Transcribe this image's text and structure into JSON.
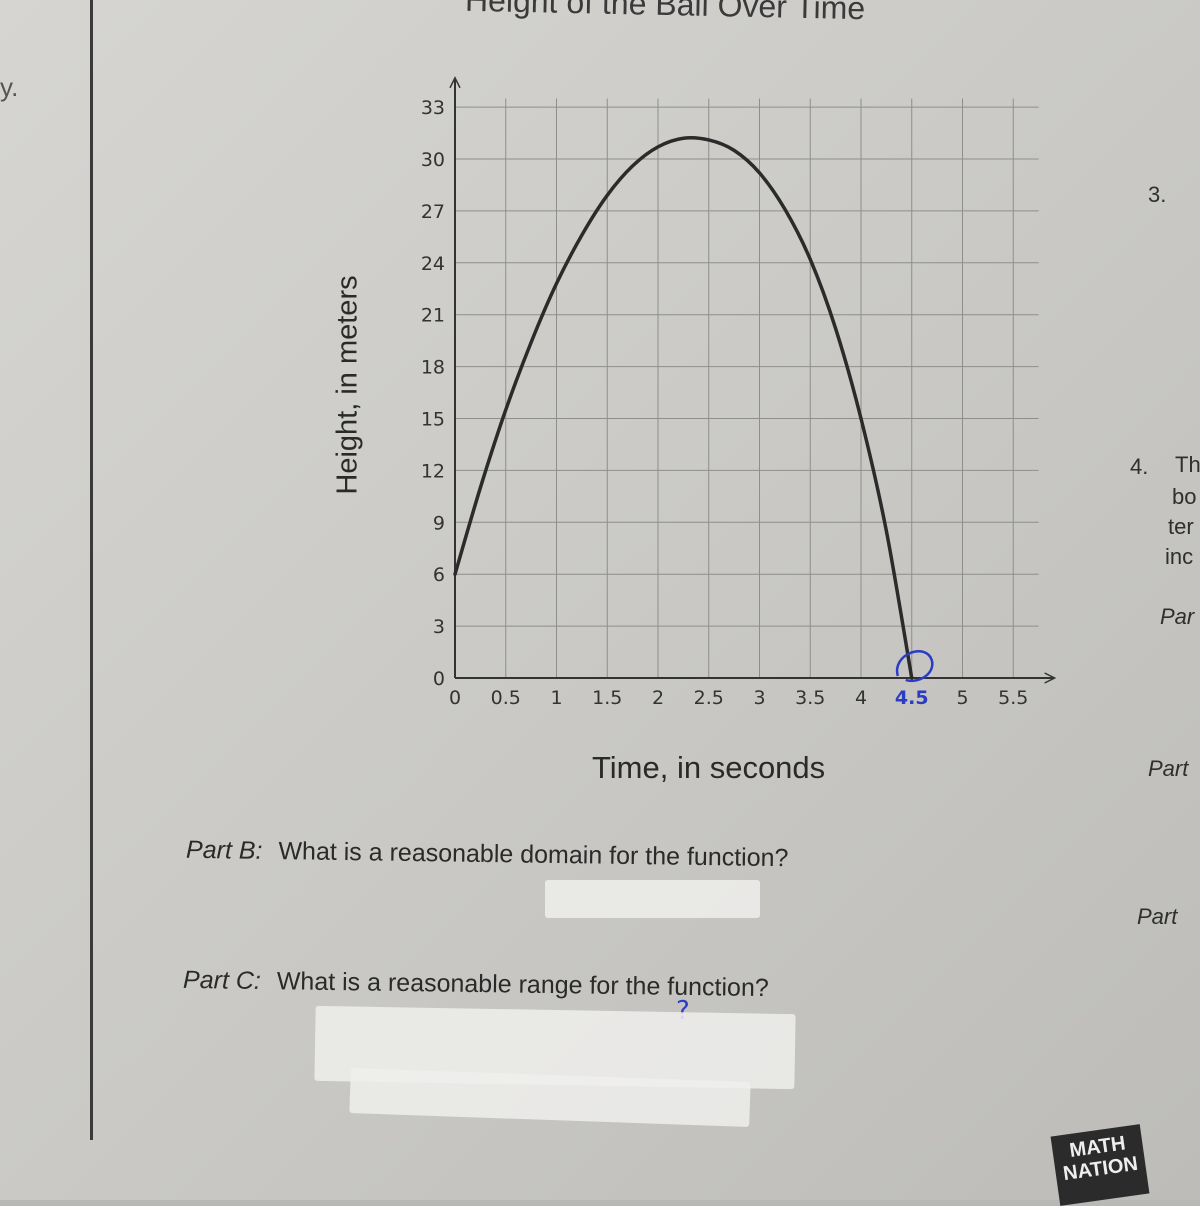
{
  "chart_data": {
    "type": "line",
    "title": "Height of the Ball Over Time",
    "xlabel": "Time, in seconds",
    "ylabel": "Height, in meters",
    "xlim": [
      0,
      5.75
    ],
    "ylim": [
      0,
      34
    ],
    "x_ticks": [
      "0",
      "0.5",
      "1",
      "1.5",
      "2",
      "2.5",
      "3",
      "3.5",
      "4",
      "4.5",
      "5",
      "5.5"
    ],
    "y_ticks": [
      "0",
      "3",
      "6",
      "9",
      "12",
      "15",
      "18",
      "21",
      "24",
      "27",
      "30",
      "33"
    ],
    "x": [
      0,
      0.25,
      0.5,
      0.75,
      1.0,
      1.25,
      1.5,
      1.75,
      2.0,
      2.25,
      2.5,
      2.75,
      3.0,
      3.25,
      3.5,
      3.75,
      4.0,
      4.25,
      4.5
    ],
    "y": [
      6.0,
      11.0,
      15.5,
      19.4,
      22.8,
      25.6,
      27.9,
      29.6,
      30.7,
      31.2,
      31.1,
      30.5,
      29.2,
      27.1,
      24.2,
      20.2,
      15.0,
      8.5,
      0
    ],
    "grid": true,
    "series_color": "#2b2b2b",
    "annotation": {
      "text": "4.5",
      "color": "#2a3cc4"
    }
  },
  "page": {
    "left_fragment": "y.",
    "part_b": {
      "label": "Part B:",
      "text": "What is a reasonable domain for the function?"
    },
    "part_c": {
      "label": "Part C:",
      "text": "What is a reasonable range for the function?"
    },
    "part_c_mark": "?",
    "right_column": {
      "q3": "3.",
      "q4": "4.",
      "frag_th": "Th",
      "frag_bo": "bo",
      "frag_ter": "ter",
      "frag_inc": "inc",
      "frag_par1": "Par",
      "frag_par2": "Part",
      "frag_par3": "Part"
    },
    "logo_text": "MATH NATION"
  }
}
